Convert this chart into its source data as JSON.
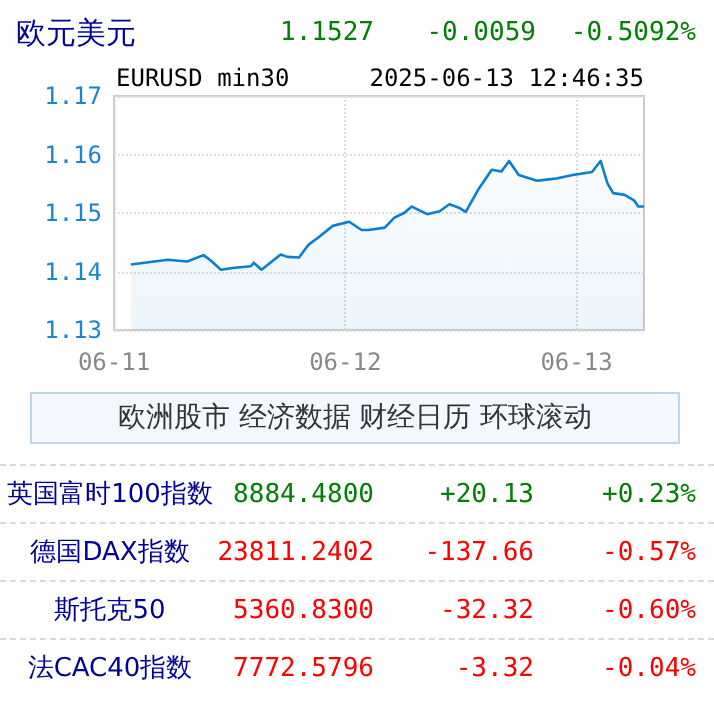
{
  "chart_data": [
    {
      "type": "area",
      "title": "欧元美元",
      "subtitle": "EURUSD min30",
      "annotations": [
        "1.1527",
        "-0.0059",
        "-0.5092%",
        "2025-06-13 12:46:35"
      ],
      "x": [
        "2025-06-11T01:45",
        "2025-06-11T05:36",
        "2025-06-11T07:36",
        "2025-06-11T09:18",
        "2025-06-11T10:06",
        "2025-06-11T11:06",
        "2025-06-11T12:18",
        "2025-06-11T14:12",
        "2025-06-11T14:30",
        "2025-06-11T15:18",
        "2025-06-11T17:18",
        "2025-06-11T18:00",
        "2025-06-11T19:12",
        "2025-06-11T20:12",
        "2025-06-11T21:12",
        "2025-06-11T22:42",
        "2025-06-12T00:24",
        "2025-06-12T01:42",
        "2025-06-12T02:24",
        "2025-06-12T04:06",
        "2025-06-12T05:06",
        "2025-06-12T06:06",
        "2025-06-12T06:54",
        "2025-06-12T08:30",
        "2025-06-12T09:48",
        "2025-06-12T10:48",
        "2025-06-12T11:48",
        "2025-06-12T12:30",
        "2025-06-12T13:48",
        "2025-06-12T15:12",
        "2025-06-12T16:12",
        "2025-06-12T17:00",
        "2025-06-12T18:00",
        "2025-06-12T19:54",
        "2025-06-12T20:54",
        "2025-06-12T21:54",
        "2025-06-12T23:36",
        "2025-06-13T01:36",
        "2025-06-13T02:30",
        "2025-06-13T03:12",
        "2025-06-13T03:48",
        "2025-06-13T05:00",
        "2025-06-13T06:00",
        "2025-06-13T06:24",
        "2025-06-13T07:00"
      ],
      "series": [
        {
          "color": "#0a7fd0",
          "values": [
            1.1412,
            1.142,
            1.1417,
            1.1428,
            1.1418,
            1.1403,
            1.1406,
            1.1409,
            1.1415,
            1.1403,
            1.1429,
            1.1425,
            1.1424,
            1.1446,
            1.1458,
            1.1478,
            1.1485,
            1.1471,
            1.1471,
            1.1475,
            1.1492,
            1.15,
            1.1511,
            1.1498,
            1.1503,
            1.1515,
            1.1509,
            1.1502,
            1.154,
            1.1574,
            1.1571,
            1.1589,
            1.1565,
            1.1555,
            1.1557,
            1.1559,
            1.1565,
            1.157,
            1.1589,
            1.1551,
            1.1534,
            1.1531,
            1.1521,
            1.1511,
            1.1511
          ]
        }
      ],
      "xlim": [
        "2025-06-11T00:00",
        "2025-06-13T07:00"
      ],
      "xticks": [
        {
          "value": "2025-06-11",
          "label": "06-11"
        },
        {
          "value": "2025-06-12",
          "label": "06-12"
        },
        {
          "value": "2025-06-13",
          "label": "06-13"
        }
      ],
      "ylim": [
        1.13,
        1.17
      ],
      "yticks": [
        1.13,
        1.14,
        1.15,
        1.16,
        1.17
      ],
      "grid": true
    },
    {
      "type": "other",
      "title": "欧洲股市 经济数据 财经日历 环球滚动",
      "categories": [
        "英国富时100指数",
        "德国DAX指数",
        "斯托克50",
        "法CAC40指数"
      ],
      "series": [
        {
          "values": [
            8884.48,
            23811.2402,
            5360.83,
            7772.5796
          ],
          "value_labels": [
            "8884.4800",
            "23811.2402",
            "5360.8300",
            "7772.5796"
          ],
          "colors": [
            "#008000",
            "#ff0000",
            "#ff0000",
            "#ff0000"
          ]
        },
        {
          "values": [
            20.13,
            -137.66,
            -32.32,
            -3.32
          ],
          "value_labels": [
            "+20.13",
            "-137.66",
            "-32.32",
            "-3.32"
          ],
          "colors": [
            "#008000",
            "#ff0000",
            "#ff0000",
            "#ff0000"
          ]
        },
        {
          "values": [
            0.23,
            -0.57,
            -0.6,
            -0.04
          ],
          "value_labels": [
            "+0.23%",
            "-0.57%",
            "-0.60%",
            "-0.04%"
          ],
          "colors": [
            "#008000",
            "#ff0000",
            "#ff0000",
            "#ff0000"
          ]
        }
      ]
    }
  ]
}
